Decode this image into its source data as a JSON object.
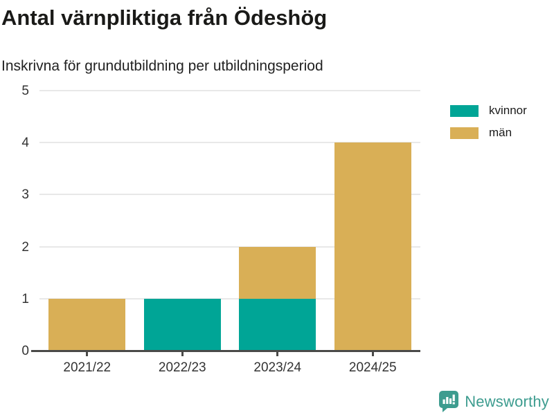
{
  "header": {
    "title": "Antal värnpliktiga från Ödeshög",
    "subtitle": "Inskrivna för grundutbildning per utbildningsperiod"
  },
  "chart_data": {
    "type": "bar",
    "stacked": true,
    "title": "Antal värnpliktiga från Ödeshög",
    "subtitle": "Inskrivna för grundutbildning per utbildningsperiod",
    "categories": [
      "2021/22",
      "2022/23",
      "2023/24",
      "2024/25"
    ],
    "series": [
      {
        "name": "kvinnor",
        "color": "#00a596",
        "values": [
          0,
          1,
          1,
          0
        ]
      },
      {
        "name": "män",
        "color": "#d9af56",
        "values": [
          1,
          0,
          1,
          4
        ]
      }
    ],
    "totals": [
      1,
      1,
      2,
      4
    ],
    "xlabel": "",
    "ylabel": "",
    "ylim": [
      0,
      5
    ],
    "yticks": [
      0,
      1,
      2,
      3,
      4,
      5
    ],
    "grid": true,
    "legend_position": "right-top",
    "axis_color": "#4a4a48",
    "grid_color": "#e8e8e8",
    "tick_label_color": "#333333"
  },
  "footer": {
    "brand": "Newsworthy",
    "brand_color": "#3d9c8f"
  }
}
